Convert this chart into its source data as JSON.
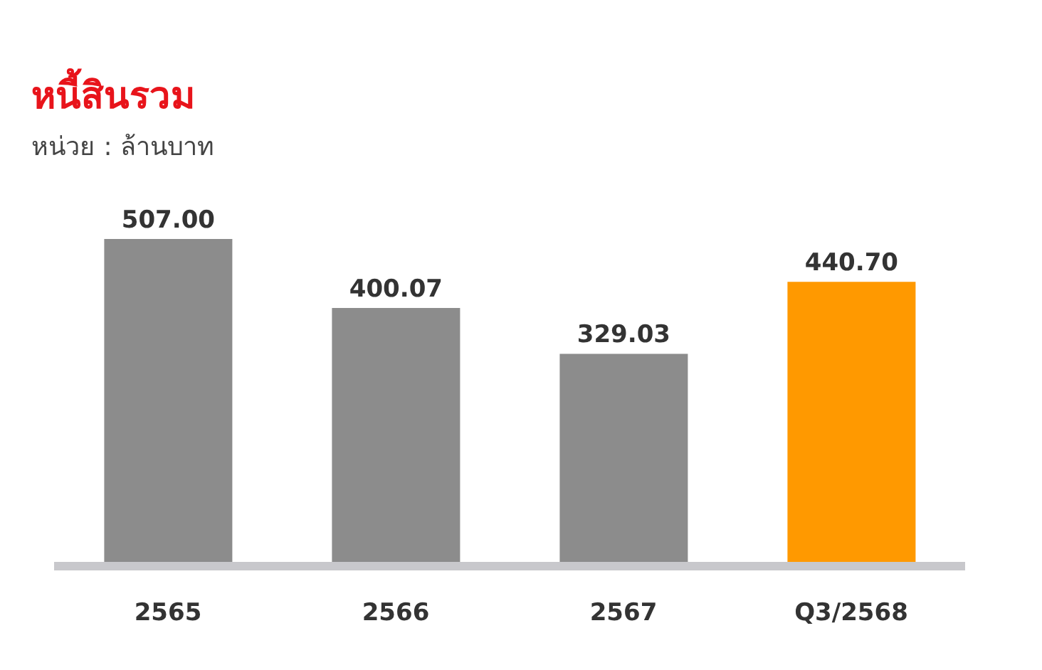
{
  "chart_data": {
    "type": "bar",
    "title": "หนี้สินรวม",
    "subtitle": "หน่วย : ล้านบาท",
    "categories": [
      "2565",
      "2566",
      "2567",
      "Q3/2568"
    ],
    "values": [
      507.0,
      400.07,
      329.03,
      440.7
    ],
    "value_labels": [
      "507.00",
      "400.07",
      "329.03",
      "440.70"
    ],
    "colors": [
      "#8c8c8c",
      "#8c8c8c",
      "#8c8c8c",
      "#ff9900"
    ]
  }
}
